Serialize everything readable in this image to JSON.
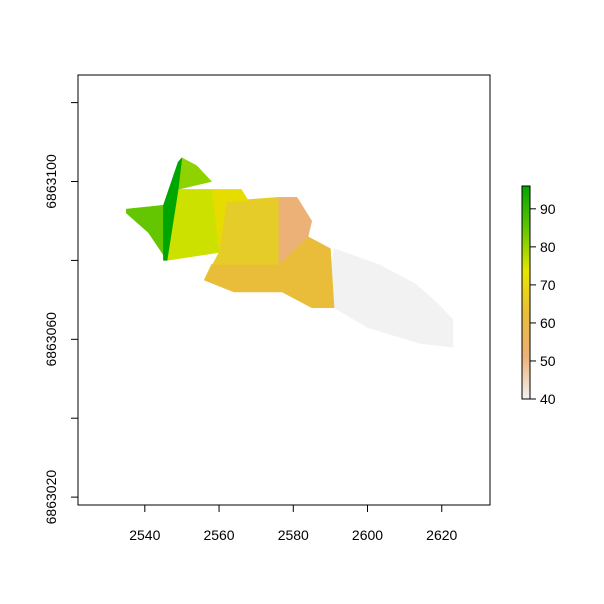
{
  "chart_data": {
    "type": "heatmap",
    "title": "",
    "xlabel": "",
    "ylabel": "",
    "xlim": [
      2522,
      2633
    ],
    "ylim": [
      6863018,
      6863127
    ],
    "x_ticks": [
      2540,
      2560,
      2580,
      2600,
      2620
    ],
    "x_tick_labels": [
      "2540",
      "2560",
      "2580",
      "2600",
      "2620"
    ],
    "y_ticks": [
      6863020,
      6863040,
      6863060,
      6863080,
      6863100,
      6863120
    ],
    "y_tick_labels": [
      "6863020",
      "",
      "6863060",
      "",
      "6863100",
      ""
    ],
    "grid": false,
    "legend": {
      "placement": "right",
      "min": 40,
      "max": 96,
      "ticks": [
        40,
        50,
        60,
        70,
        80,
        90
      ],
      "tick_labels": [
        "40",
        "50",
        "60",
        "70",
        "80",
        "90"
      ],
      "colors": [
        "#f2f2f2",
        "#ecb176",
        "#e9bd3a",
        "#e6e600",
        "#63c600",
        "#00a600"
      ]
    },
    "regions": [
      {
        "value": 40,
        "color": "#f2f2f2",
        "outline": [
          [
            2591,
            6863083
          ],
          [
            2603,
            6863079
          ],
          [
            2613,
            6863074
          ],
          [
            2619,
            6863069
          ],
          [
            2623,
            6863065
          ],
          [
            2623,
            6863058
          ],
          [
            2614,
            6863059
          ],
          [
            2600,
            6863063
          ],
          [
            2591,
            6863068
          ],
          [
            2589,
            6863072
          ]
        ]
      },
      {
        "value": 60,
        "color": "#e9bd3a",
        "outline": [
          [
            2576,
            6863079
          ],
          [
            2584,
            6863086
          ],
          [
            2590,
            6863083
          ],
          [
            2591,
            6863068
          ],
          [
            2585,
            6863068
          ],
          [
            2577,
            6863072
          ],
          [
            2564,
            6863072
          ],
          [
            2556,
            6863075
          ],
          [
            2558,
            6863079
          ]
        ]
      },
      {
        "value": 53,
        "color": "#ecb176",
        "outline": [
          [
            2576,
            6863096
          ],
          [
            2581,
            6863096
          ],
          [
            2585,
            6863090
          ],
          [
            2584,
            6863086
          ],
          [
            2576,
            6863079
          ]
        ]
      },
      {
        "value": 68,
        "color": "#e6cc28",
        "outline": [
          [
            2562,
            6863095
          ],
          [
            2576,
            6863096
          ],
          [
            2576,
            6863079
          ],
          [
            2558,
            6863079
          ],
          [
            2556,
            6863075
          ],
          [
            2560,
            6863082
          ]
        ]
      },
      {
        "value": 72,
        "color": "#e6dc00",
        "outline": [
          [
            2558,
            6863098
          ],
          [
            2566,
            6863098
          ],
          [
            2568,
            6863095
          ],
          [
            2562,
            6863095
          ],
          [
            2560,
            6863082
          ]
        ]
      },
      {
        "value": 75,
        "color": "#cde100",
        "outline": [
          [
            2549,
            6863098
          ],
          [
            2558,
            6863098
          ],
          [
            2560,
            6863082
          ],
          [
            2546,
            6863080
          ]
        ]
      },
      {
        "value": 80,
        "color": "#8ed200",
        "outline": [
          [
            2550,
            6863106
          ],
          [
            2554,
            6863104
          ],
          [
            2558,
            6863100
          ],
          [
            2549,
            6863098
          ]
        ]
      },
      {
        "value": 84,
        "color": "#63c600",
        "outline": [
          [
            2535,
            6863093
          ],
          [
            2545,
            6863094
          ],
          [
            2546,
            6863080
          ],
          [
            2541,
            6863087
          ],
          [
            2535,
            6863092
          ]
        ]
      },
      {
        "value": 96,
        "color": "#00a600",
        "outline": [
          [
            2549,
            6863105
          ],
          [
            2550,
            6863106
          ],
          [
            2549,
            6863098
          ],
          [
            2546,
            6863080
          ],
          [
            2545,
            6863080
          ],
          [
            2545,
            6863094
          ]
        ]
      }
    ]
  }
}
